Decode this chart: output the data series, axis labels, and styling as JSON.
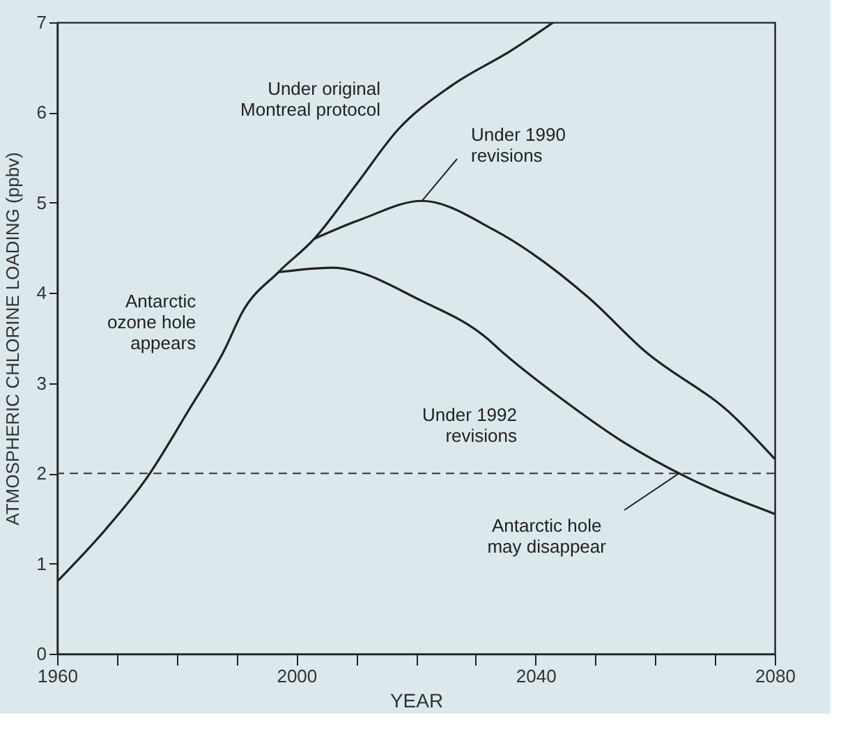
{
  "chart_data": {
    "type": "line",
    "xlabel": "YEAR",
    "ylabel": "ATMOSPHERIC CHLORINE LOADING (ppbv)",
    "xlim": [
      1960,
      2080
    ],
    "xticks": [
      1960,
      {
        "value": 1970,
        "label": null
      },
      {
        "value": 1980,
        "label": null
      },
      {
        "value": 1990,
        "label": null
      },
      2000,
      {
        "value": 2010,
        "label": null
      },
      {
        "value": 2020,
        "label": null
      },
      {
        "value": 2030,
        "label": null
      },
      2040,
      {
        "value": 2050,
        "label": null
      },
      {
        "value": 2060,
        "label": null
      },
      {
        "value": 2070,
        "label": null
      },
      2080
    ],
    "ylim": [
      0,
      7
    ],
    "yticks": [
      0,
      1,
      2,
      3,
      4,
      5,
      6,
      7
    ],
    "grid": false,
    "marker": "none",
    "line_style": "solid",
    "series": [
      {
        "name": "Under original\nMontreal protocol",
        "color": "#222222",
        "x": [
          1960,
          1968,
          1975,
          1982,
          1988,
          1991,
          1997,
          2003,
          2010,
          2017,
          2026,
          2036,
          2043
        ],
        "values": [
          0.8,
          1.37,
          1.95,
          2.7,
          3.37,
          3.79,
          4.23,
          4.6,
          5.2,
          5.81,
          6.3,
          6.69,
          7.0
        ]
      },
      {
        "name": "Under 1990\nrevisions",
        "color": "#222222",
        "x": [
          2003,
          2011,
          2021,
          2033,
          2049,
          2058,
          2073,
          2080
        ],
        "values": [
          4.6,
          4.82,
          5.02,
          4.7,
          3.94,
          3.37,
          2.64,
          2.16
        ]
      },
      {
        "name": "Under 1992\nrevisions",
        "color": "#222222",
        "x": [
          1997,
          2006,
          2021,
          2032,
          2034,
          2045.5,
          2054.6,
          2065.5,
          2080
        ],
        "values": [
          4.23,
          4.28,
          3.91,
          3.49,
          3.37,
          2.77,
          2.35,
          1.95,
          1.55
        ]
      }
    ],
    "ref_lines": [
      {
        "axis": "y",
        "value": 2,
        "label": null,
        "color": "#333333",
        "line_style": "dashed"
      }
    ],
    "annotations": [
      {
        "text": "Antarctic\nozone hole\nappears",
        "x": 1986,
        "y": 3.3
      },
      {
        "text": "Antarctic hole\nmay disappear",
        "x": 2064,
        "y": 2
      }
    ]
  }
}
